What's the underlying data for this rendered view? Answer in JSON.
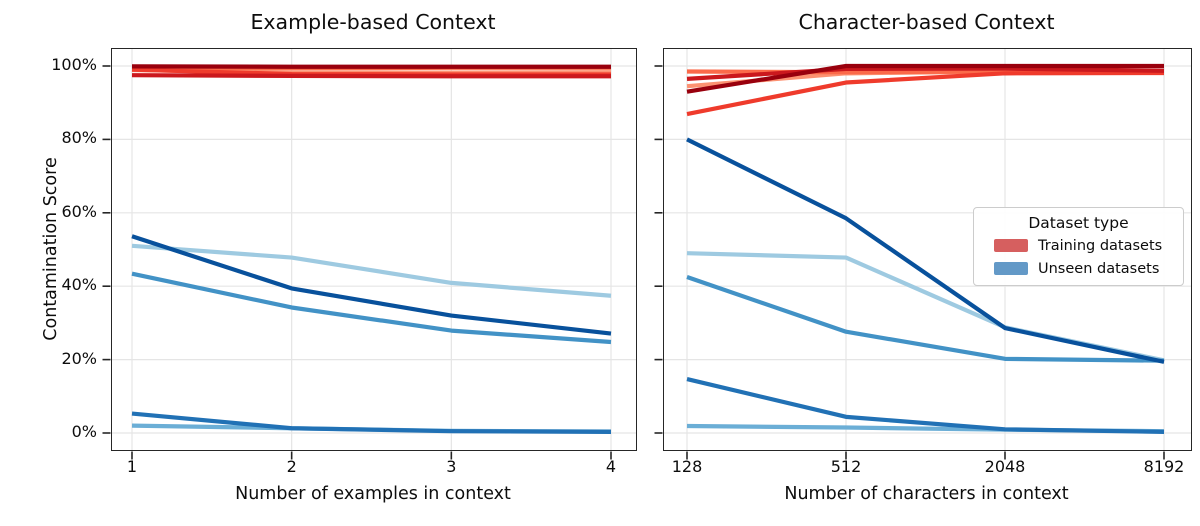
{
  "figure": {
    "ylabel": "Contamination Score",
    "y_ticks": [
      {
        "label": "100%",
        "value": 100
      },
      {
        "label": "80%",
        "value": 80
      },
      {
        "label": "60%",
        "value": 60
      },
      {
        "label": "40%",
        "value": 40
      },
      {
        "label": "20%",
        "value": 20
      },
      {
        "label": "0%",
        "value": 0
      }
    ]
  },
  "legend": {
    "title": "Dataset type",
    "entries": [
      {
        "label": "Training datasets",
        "color": "#d65f5f"
      },
      {
        "label": "Unseen datasets",
        "color": "#6399c7"
      }
    ]
  },
  "chart_data": [
    {
      "type": "line",
      "title": "Example-based Context",
      "xlabel": "Number of examples in context",
      "ylabel": "Contamination Score",
      "categories": [
        "1",
        "2",
        "3",
        "4"
      ],
      "ylim": [
        0,
        100
      ],
      "grid": true,
      "legend_position": "none",
      "series": [
        {
          "group": "Training datasets",
          "color": "#fc9272",
          "values": [
            98.9,
            98.2,
            98.2,
            98.3
          ]
        },
        {
          "group": "Training datasets",
          "color": "#fb6a4a",
          "values": [
            99.4,
            99.4,
            99.5,
            99.5
          ]
        },
        {
          "group": "Training datasets",
          "color": "#ef3b2c",
          "values": [
            99.0,
            97.8,
            97.7,
            97.7
          ]
        },
        {
          "group": "Training datasets",
          "color": "#cb181d",
          "values": [
            97.5,
            97.3,
            97.2,
            97.2
          ]
        },
        {
          "group": "Training datasets",
          "color": "#99000d",
          "values": [
            99.9,
            99.8,
            99.8,
            99.8
          ]
        },
        {
          "group": "Unseen datasets",
          "color": "#9ecae1",
          "values": [
            51.0,
            47.8,
            40.9,
            37.4
          ]
        },
        {
          "group": "Unseen datasets",
          "color": "#6baed6",
          "values": [
            2.0,
            1.3,
            0.6,
            0.4
          ]
        },
        {
          "group": "Unseen datasets",
          "color": "#4292c6",
          "values": [
            43.4,
            34.2,
            27.9,
            24.8
          ]
        },
        {
          "group": "Unseen datasets",
          "color": "#2171b5",
          "values": [
            5.3,
            1.3,
            0.5,
            0.3
          ]
        },
        {
          "group": "Unseen datasets",
          "color": "#08519c",
          "values": [
            53.6,
            39.4,
            32.0,
            27.1
          ]
        }
      ]
    },
    {
      "type": "line",
      "title": "Character-based Context",
      "xlabel": "Number of characters in context",
      "ylabel": "Contamination Score",
      "categories": [
        "128",
        "512",
        "2048",
        "8192"
      ],
      "ylim": [
        0,
        100
      ],
      "grid": true,
      "legend_position": "center right",
      "series": [
        {
          "group": "Training datasets",
          "color": "#fc9272",
          "values": [
            94.5,
            98.0,
            98.5,
            98.6
          ]
        },
        {
          "group": "Training datasets",
          "color": "#fb6a4a",
          "values": [
            98.5,
            98.3,
            98.5,
            98.5
          ]
        },
        {
          "group": "Training datasets",
          "color": "#ef3b2c",
          "values": [
            86.9,
            95.5,
            98.0,
            98.1
          ]
        },
        {
          "group": "Training datasets",
          "color": "#cb181d",
          "values": [
            96.5,
            99.2,
            99.3,
            98.7
          ]
        },
        {
          "group": "Training datasets",
          "color": "#99000d",
          "values": [
            93.0,
            100.0,
            100.0,
            100.0
          ]
        },
        {
          "group": "Unseen datasets",
          "color": "#9ecae1",
          "values": [
            49.0,
            47.8,
            28.8,
            19.8
          ]
        },
        {
          "group": "Unseen datasets",
          "color": "#6baed6",
          "values": [
            1.9,
            1.5,
            0.9,
            0.5
          ]
        },
        {
          "group": "Unseen datasets",
          "color": "#4292c6",
          "values": [
            42.5,
            27.6,
            20.2,
            19.7
          ]
        },
        {
          "group": "Unseen datasets",
          "color": "#2171b5",
          "values": [
            14.7,
            4.4,
            1.0,
            0.3
          ]
        },
        {
          "group": "Unseen datasets",
          "color": "#08519c",
          "values": [
            80.0,
            58.5,
            28.6,
            19.4
          ]
        }
      ]
    }
  ]
}
